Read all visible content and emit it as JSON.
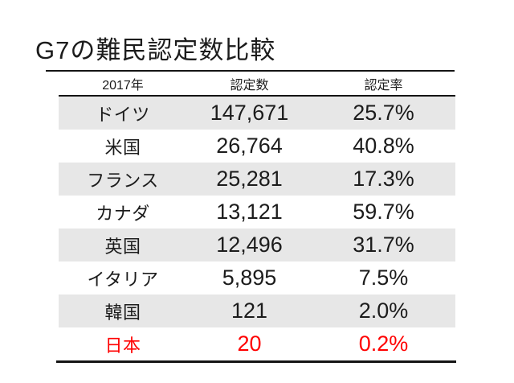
{
  "slide": {
    "title": "G7の難民認定数比較"
  },
  "table": {
    "columns": [
      "2017年",
      "認定数",
      "認定率"
    ],
    "rows": [
      {
        "country": "ドイツ",
        "count": "147,671",
        "rate": "25.7%",
        "highlight": false
      },
      {
        "country": "米国",
        "count": "26,764",
        "rate": "40.8%",
        "highlight": false
      },
      {
        "country": "フランス",
        "count": "25,281",
        "rate": "17.3%",
        "highlight": false
      },
      {
        "country": "カナダ",
        "count": "13,121",
        "rate": "59.7%",
        "highlight": false
      },
      {
        "country": "英国",
        "count": "12,496",
        "rate": "31.7%",
        "highlight": false
      },
      {
        "country": "イタリア",
        "count": "5,895",
        "rate": "7.5%",
        "highlight": false
      },
      {
        "country": "韓国",
        "count": "121",
        "rate": "2.0%",
        "highlight": false
      },
      {
        "country": "日本",
        "count": "20",
        "rate": "0.2%",
        "highlight": true
      }
    ]
  },
  "colors": {
    "text": "#1c1c1c",
    "highlight": "#ff0000",
    "row_shade": "#e7e7e7",
    "rule_line": "#141414",
    "background": "#ffffff"
  }
}
